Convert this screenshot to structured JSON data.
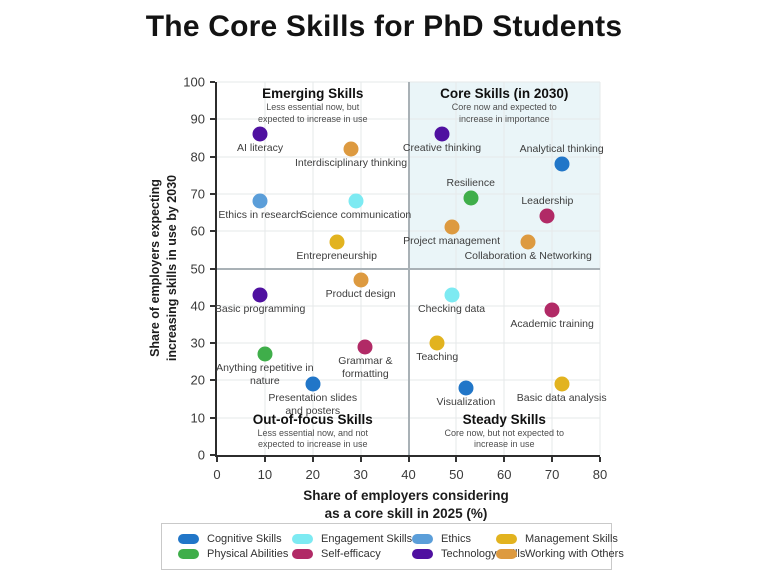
{
  "title": "The Core Skills for PhD Students",
  "chart_data": {
    "type": "scatter",
    "title": "The Core Skills for PhD Students",
    "xlabel": "Share of employers considering\nas a core skill in 2025 (%)",
    "ylabel": "Share of employers expecting\nincreasing skills in use by 2030",
    "xlim": [
      0,
      80
    ],
    "ylim": [
      0,
      100
    ],
    "xticks": [
      0,
      10,
      20,
      30,
      40,
      50,
      60,
      70,
      80
    ],
    "yticks": [
      0,
      10,
      20,
      30,
      40,
      50,
      60,
      70,
      80,
      90,
      100
    ],
    "grid": true,
    "quadrant_dividers": {
      "x": 40,
      "y": 50
    },
    "highlight_quadrant": {
      "x_range": [
        40,
        80
      ],
      "y_range": [
        50,
        100
      ],
      "color": "#eaf5f8"
    },
    "quadrants": [
      {
        "name": "Emerging Skills",
        "subtitle": "Less essential now, but\nexpected to increase in use",
        "position": "top-left"
      },
      {
        "name": "Core Skills (in 2030)",
        "subtitle": "Core now and expected to\nincrease in importance",
        "position": "top-right"
      },
      {
        "name": "Out-of-focus Skills",
        "subtitle": "Less essential now, and not\nexpected to increase in use",
        "position": "bottom-left"
      },
      {
        "name": "Steady Skills",
        "subtitle": "Core now, but not expected to\nincrease in use",
        "position": "bottom-right"
      }
    ],
    "categories": [
      {
        "name": "Cognitive Skills",
        "color": "#2176c8"
      },
      {
        "name": "Engagement Skills",
        "color": "#7deaf2"
      },
      {
        "name": "Ethics",
        "color": "#5b9ed9"
      },
      {
        "name": "Management Skills",
        "color": "#e2b31f"
      },
      {
        "name": "Physical Abilities",
        "color": "#3fae4a"
      },
      {
        "name": "Self-efficacy",
        "color": "#b12a66"
      },
      {
        "name": "Technology Skills",
        "color": "#4f10a0"
      },
      {
        "name": "Working with Others",
        "color": "#dd9a40"
      }
    ],
    "points": [
      {
        "label": "AI literacy",
        "x": 9,
        "y": 86,
        "category": "Technology Skills",
        "label_pos": "below"
      },
      {
        "label": "Interdisciplinary thinking",
        "x": 28,
        "y": 82,
        "category": "Working with Others",
        "label_pos": "below"
      },
      {
        "label": "Ethics in research",
        "x": 9,
        "y": 68,
        "category": "Ethics",
        "label_pos": "below"
      },
      {
        "label": "Science communication",
        "x": 29,
        "y": 68,
        "category": "Engagement Skills",
        "label_pos": "below"
      },
      {
        "label": "Entrepreneurship",
        "x": 25,
        "y": 57,
        "category": "Management Skills",
        "label_pos": "below"
      },
      {
        "label": "Creative thinking",
        "x": 47,
        "y": 86,
        "category": "Technology Skills",
        "label_pos": "below"
      },
      {
        "label": "Analytical thinking",
        "x": 72,
        "y": 78,
        "category": "Cognitive Skills",
        "label_pos": "above"
      },
      {
        "label": "Resilience",
        "x": 53,
        "y": 69,
        "category": "Physical Abilities",
        "label_pos": "above"
      },
      {
        "label": "Leadership",
        "x": 69,
        "y": 64,
        "category": "Self-efficacy",
        "label_pos": "above"
      },
      {
        "label": "Project management",
        "x": 49,
        "y": 61,
        "category": "Working with Others",
        "label_pos": "below"
      },
      {
        "label": "Collaboration & Networking",
        "x": 65,
        "y": 57,
        "category": "Working with Others",
        "label_pos": "below"
      },
      {
        "label": "Product design",
        "x": 30,
        "y": 47,
        "category": "Working with Others",
        "label_pos": "below"
      },
      {
        "label": "Basic programming",
        "x": 9,
        "y": 43,
        "category": "Technology Skills",
        "label_pos": "below"
      },
      {
        "label": "Checking data",
        "x": 49,
        "y": 43,
        "category": "Engagement Skills",
        "label_pos": "below"
      },
      {
        "label": "Academic training",
        "x": 70,
        "y": 39,
        "category": "Self-efficacy",
        "label_pos": "below"
      },
      {
        "label": "Teaching",
        "x": 46,
        "y": 30,
        "category": "Management Skills",
        "label_pos": "below"
      },
      {
        "label": "Grammar &\nformatting",
        "x": 31,
        "y": 29,
        "category": "Self-efficacy",
        "label_pos": "below"
      },
      {
        "label": "Anything repetitive in\nnature",
        "x": 10,
        "y": 27,
        "category": "Physical Abilities",
        "label_pos": "below"
      },
      {
        "label": "Presentation slides\nand posters",
        "x": 20,
        "y": 19,
        "category": "Cognitive Skills",
        "label_pos": "below"
      },
      {
        "label": "Visualization",
        "x": 52,
        "y": 18,
        "category": "Cognitive Skills",
        "label_pos": "below"
      },
      {
        "label": "Basic data analysis",
        "x": 72,
        "y": 19,
        "category": "Management Skills",
        "label_pos": "below"
      }
    ],
    "legend_position": "bottom"
  }
}
